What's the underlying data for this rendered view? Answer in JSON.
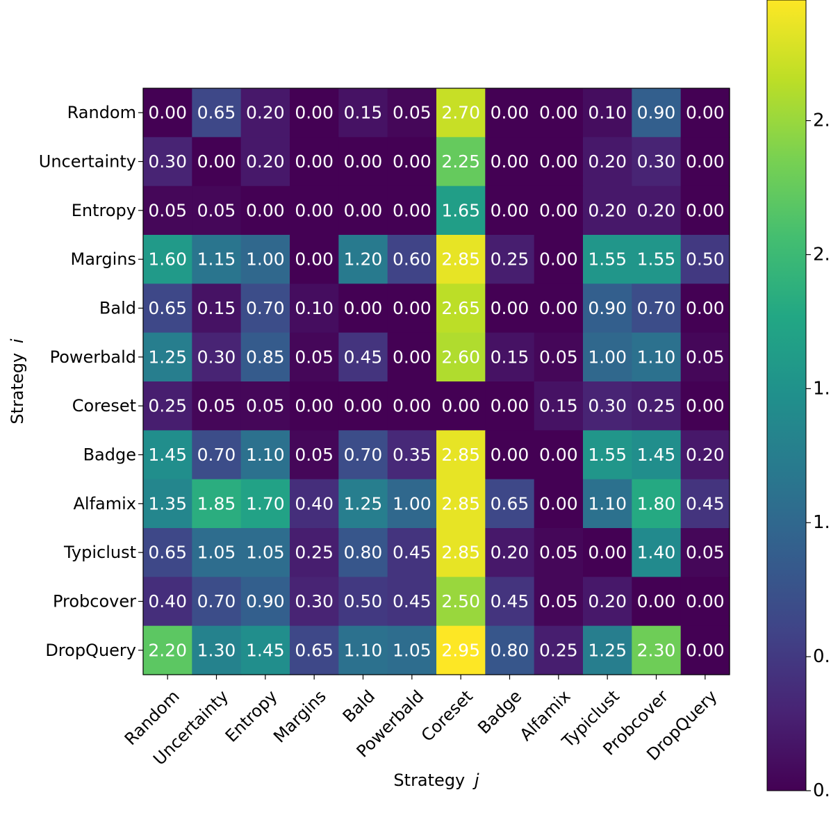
{
  "chart_data": {
    "type": "heatmap",
    "xlabel": "Strategy",
    "xlabel_var": "j",
    "ylabel": "Strategy",
    "ylabel_var": "i",
    "rows": [
      "Random",
      "Uncertainty",
      "Entropy",
      "Margins",
      "Bald",
      "Powerbald",
      "Coreset",
      "Badge",
      "Alfamix",
      "Typiclust",
      "Probcover",
      "DropQuery"
    ],
    "columns": [
      "Random",
      "Uncertainty",
      "Entropy",
      "Margins",
      "Bald",
      "Powerbald",
      "Coreset",
      "Badge",
      "Alfamix",
      "Typiclust",
      "Probcover",
      "DropQuery"
    ],
    "values": [
      [
        0.0,
        0.65,
        0.2,
        0.0,
        0.15,
        0.05,
        2.7,
        0.0,
        0.0,
        0.1,
        0.9,
        0.0
      ],
      [
        0.3,
        0.0,
        0.2,
        0.0,
        0.0,
        0.0,
        2.25,
        0.0,
        0.0,
        0.2,
        0.3,
        0.0
      ],
      [
        0.05,
        0.05,
        0.0,
        0.0,
        0.0,
        0.0,
        1.65,
        0.0,
        0.0,
        0.2,
        0.2,
        0.0
      ],
      [
        1.6,
        1.15,
        1.0,
        0.0,
        1.2,
        0.6,
        2.85,
        0.25,
        0.0,
        1.55,
        1.55,
        0.5
      ],
      [
        0.65,
        0.15,
        0.7,
        0.1,
        0.0,
        0.0,
        2.65,
        0.0,
        0.0,
        0.9,
        0.7,
        0.0
      ],
      [
        1.25,
        0.3,
        0.85,
        0.05,
        0.45,
        0.0,
        2.6,
        0.15,
        0.05,
        1.0,
        1.1,
        0.05
      ],
      [
        0.25,
        0.05,
        0.05,
        0.0,
        0.0,
        0.0,
        0.0,
        0.0,
        0.15,
        0.3,
        0.25,
        0.0
      ],
      [
        1.45,
        0.7,
        1.1,
        0.05,
        0.7,
        0.35,
        2.85,
        0.0,
        0.0,
        1.55,
        1.45,
        0.2
      ],
      [
        1.35,
        1.85,
        1.7,
        0.4,
        1.25,
        1.0,
        2.85,
        0.65,
        0.0,
        1.1,
        1.8,
        0.45
      ],
      [
        0.65,
        1.05,
        1.05,
        0.25,
        0.8,
        0.45,
        2.85,
        0.2,
        0.05,
        0.0,
        1.4,
        0.05
      ],
      [
        0.4,
        0.7,
        0.9,
        0.3,
        0.5,
        0.45,
        2.5,
        0.45,
        0.05,
        0.2,
        0.0,
        0.0
      ],
      [
        2.2,
        1.3,
        1.45,
        0.65,
        1.1,
        1.05,
        2.95,
        0.8,
        0.25,
        1.25,
        2.3,
        0.0
      ]
    ],
    "value_format": "2 decimals",
    "colormap": "viridis",
    "vmin": 0.0,
    "vmax": 2.95,
    "colorbar": {
      "ticks": [
        {
          "value": 0.0,
          "label": "0."
        },
        {
          "value": 0.5,
          "label": "0."
        },
        {
          "value": 1.0,
          "label": "1."
        },
        {
          "value": 1.5,
          "label": "1."
        },
        {
          "value": 2.0,
          "label": "2."
        },
        {
          "value": 2.5,
          "label": "2."
        }
      ]
    }
  }
}
